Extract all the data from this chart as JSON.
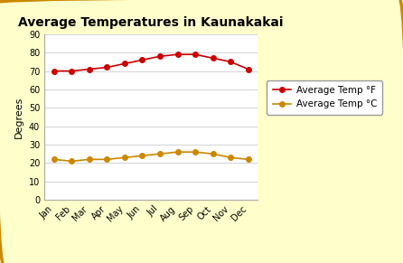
{
  "title": "Average Temperatures in Kaunakakai",
  "ylabel": "Degrees",
  "months": [
    "Jan",
    "Feb",
    "Mar",
    "Apr",
    "May",
    "Jun",
    "Jul",
    "Aug",
    "Sep",
    "Oct",
    "Nov",
    "Dec"
  ],
  "temp_f": [
    70,
    70,
    71,
    72,
    74,
    76,
    78,
    79,
    79,
    77,
    75,
    71
  ],
  "temp_c": [
    22,
    21,
    22,
    22,
    23,
    24,
    25,
    26,
    26,
    25,
    23,
    22
  ],
  "color_f": "#cc0000",
  "color_c": "#cc8800",
  "ylim_min": 0,
  "ylim_max": 90,
  "yticks": [
    0,
    10,
    20,
    30,
    40,
    50,
    60,
    70,
    80,
    90
  ],
  "legend_label_f": "Average Temp °F",
  "legend_label_c": "Average Temp °C",
  "bg_color": "#ffffcc",
  "plot_bg_color": "#ffffff",
  "outer_border_color": "#cc8800",
  "title_fontsize": 10,
  "axis_label_fontsize": 8,
  "tick_fontsize": 7,
  "legend_fontsize": 7.5
}
